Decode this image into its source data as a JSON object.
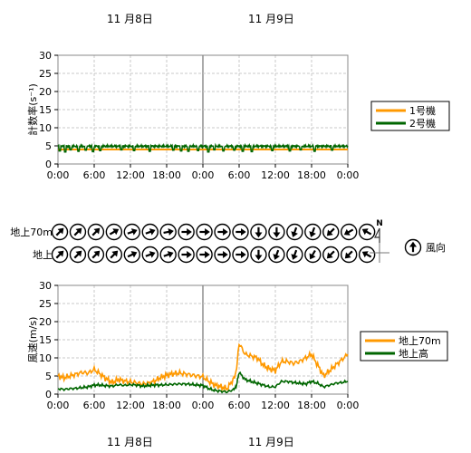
{
  "dates": {
    "top": [
      "11 月8日",
      "11 月9日"
    ],
    "bottom": [
      "11 月8日",
      "11 月9日"
    ]
  },
  "chart_data": [
    {
      "type": "line",
      "ylabel": "計数率(s⁻¹)",
      "ylim": [
        0,
        30
      ],
      "yticks": [
        0,
        5,
        10,
        15,
        20,
        25,
        30
      ],
      "xlim": [
        0,
        48
      ],
      "xticks": [
        0,
        6,
        12,
        18,
        24,
        30,
        36,
        42,
        48
      ],
      "xticklabels": [
        "0:00",
        "6:00",
        "12:00",
        "18:00",
        "0:00",
        "6:00",
        "12:00",
        "18:00",
        "0:00"
      ],
      "grid": true,
      "legend_position": "right",
      "series": [
        {
          "name": "1号機",
          "color": "#ff9900",
          "x": [
            0,
            48
          ],
          "y": [
            4.0,
            4.0
          ]
        },
        {
          "name": "2号機",
          "color": "#006600",
          "baseline": 4.9,
          "dips": [
            [
              0.3,
              3.6
            ],
            [
              1.2,
              3.3
            ],
            [
              2.1,
              3.9
            ],
            [
              3.4,
              3.5
            ],
            [
              4.6,
              3.8
            ],
            [
              5.8,
              3.4
            ],
            [
              7.0,
              3.7
            ],
            [
              10.5,
              3.9
            ],
            [
              12.6,
              3.7
            ],
            [
              15.2,
              3.5
            ],
            [
              19.1,
              3.8
            ],
            [
              20.4,
              3.6
            ],
            [
              21.6,
              3.5
            ],
            [
              23.2,
              3.7
            ],
            [
              24.9,
              3.3
            ],
            [
              25.9,
              3.9
            ],
            [
              27.4,
              3.6
            ],
            [
              29.2,
              3.8
            ],
            [
              30.6,
              3.5
            ],
            [
              32.1,
              3.4
            ],
            [
              35.5,
              3.7
            ],
            [
              38.4,
              3.6
            ],
            [
              40.2,
              3.9
            ],
            [
              42.5,
              3.5
            ],
            [
              45.4,
              3.8
            ]
          ]
        }
      ]
    },
    {
      "type": "wind-direction",
      "rows": [
        {
          "label": "地上70m",
          "bearings": [
            225,
            225,
            225,
            240,
            250,
            250,
            260,
            270,
            270,
            270,
            270,
            0,
            0,
            20,
            20,
            45,
            60,
            120
          ]
        },
        {
          "label": "地上",
          "bearings": [
            225,
            225,
            225,
            225,
            245,
            250,
            250,
            270,
            270,
            270,
            270,
            0,
            20,
            20,
            30,
            45,
            45,
            120
          ]
        }
      ],
      "compass_label": "N",
      "legend_label": "風向"
    },
    {
      "type": "line",
      "ylabel": "風速(m/s)",
      "ylim": [
        0,
        30
      ],
      "yticks": [
        0,
        5,
        10,
        15,
        20,
        25,
        30
      ],
      "xlim": [
        0,
        48
      ],
      "xticks": [
        0,
        6,
        12,
        18,
        24,
        30,
        36,
        42,
        48
      ],
      "xticklabels": [
        "0:00",
        "6:00",
        "12:00",
        "18:00",
        "0:00",
        "6:00",
        "12:00",
        "18:00",
        "0:00"
      ],
      "grid": true,
      "legend_position": "right",
      "series": [
        {
          "name": "地上70m",
          "color": "#ff9900",
          "x": [
            0,
            1,
            2,
            3,
            4,
            5,
            6,
            7,
            8,
            9,
            10,
            11,
            12,
            13,
            14,
            15,
            16,
            17,
            18,
            19,
            20,
            21,
            22,
            23,
            24,
            25,
            26,
            27,
            28,
            29,
            29.5,
            30,
            31,
            32,
            33,
            34,
            35,
            36,
            37,
            38,
            39,
            40,
            41,
            42,
            43,
            44,
            45,
            46,
            47,
            48
          ],
          "y": [
            5,
            4.5,
            5,
            5.5,
            6,
            5.8,
            6.8,
            5.5,
            4.2,
            3.2,
            4,
            3.6,
            3.4,
            3.1,
            2.8,
            3,
            3.6,
            4.6,
            5.2,
            5.6,
            5.8,
            5.6,
            5.3,
            5,
            4.8,
            3.5,
            2.5,
            2,
            1.5,
            4,
            6,
            14,
            11,
            10.5,
            10,
            8,
            7,
            6.5,
            9,
            9,
            8.5,
            9,
            10,
            11,
            8,
            5,
            6.5,
            8,
            9.5,
            11
          ]
        },
        {
          "name": "地上高",
          "color": "#006600",
          "x": [
            0,
            1,
            2,
            3,
            4,
            5,
            6,
            7,
            8,
            9,
            10,
            11,
            12,
            13,
            14,
            15,
            16,
            17,
            18,
            19,
            20,
            21,
            22,
            23,
            24,
            25,
            26,
            27,
            28,
            29,
            29.5,
            30,
            31,
            32,
            33,
            34,
            35,
            36,
            37,
            38,
            39,
            40,
            41,
            42,
            43,
            44,
            45,
            46,
            47,
            48
          ],
          "y": [
            1.5,
            1.3,
            1.5,
            1.6,
            1.8,
            2,
            2.5,
            2.5,
            2.3,
            2.2,
            2.6,
            2.4,
            2.6,
            2.5,
            2.2,
            2.4,
            2.5,
            2.5,
            2.6,
            2.7,
            2.8,
            2.8,
            2.7,
            2.5,
            2.4,
            1.5,
            1,
            0.8,
            0.6,
            1.2,
            2,
            6,
            4,
            3.5,
            3,
            2.5,
            2,
            2,
            3.5,
            3.5,
            3.2,
            3,
            2.8,
            3.5,
            3,
            2,
            2.5,
            3,
            3.2,
            3.5
          ]
        }
      ]
    }
  ]
}
